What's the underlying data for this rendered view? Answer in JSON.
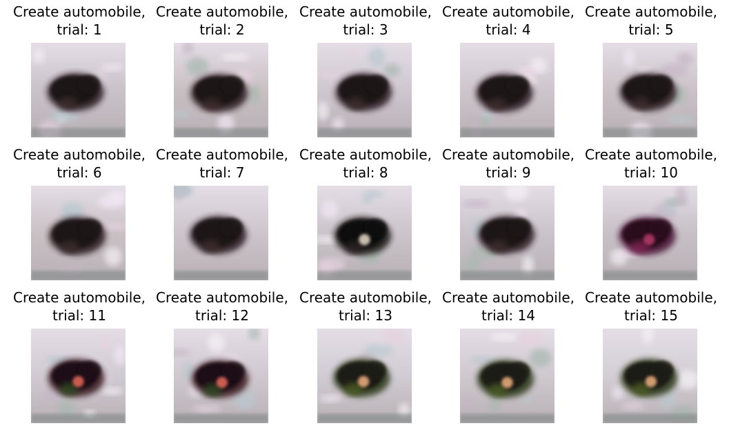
{
  "panels": [
    {
      "title": "Create automobile,",
      "subtitle": "trial: 1",
      "palette": "dark",
      "bg": "#c9c2c9"
    },
    {
      "title": "Create automobile,",
      "subtitle": "trial: 2",
      "palette": "dark",
      "bg": "#c8bfc2"
    },
    {
      "title": "Create automobile,",
      "subtitle": "trial: 3",
      "palette": "dark",
      "bg": "#cfc7d0"
    },
    {
      "title": "Create automobile,",
      "subtitle": "trial: 4",
      "palette": "dark",
      "bg": "#cec6cc"
    },
    {
      "title": "Create automobile,",
      "subtitle": "trial: 5",
      "palette": "dark",
      "bg": "#cac2c6"
    },
    {
      "title": "Create automobile,",
      "subtitle": "trial: 6",
      "palette": "dark",
      "bg": "#c9c1c4"
    },
    {
      "title": "Create automobile,",
      "subtitle": "trial: 7",
      "palette": "dark",
      "bg": "#cdc5cb"
    },
    {
      "title": "Create automobile,",
      "subtitle": "trial: 8",
      "palette": "ring",
      "bg": "#cbc4ca"
    },
    {
      "title": "Create automobile,",
      "subtitle": "trial: 9",
      "palette": "dark",
      "bg": "#cac3ca"
    },
    {
      "title": "Create automobile,",
      "subtitle": "trial: 10",
      "palette": "magenta",
      "bg": "#c7c0c6"
    },
    {
      "title": "Create automobile,",
      "subtitle": "trial: 11",
      "palette": "mixed",
      "bg": "#d0cad2"
    },
    {
      "title": "Create automobile,",
      "subtitle": "trial: 12",
      "palette": "mixed",
      "bg": "#cfc8cf"
    },
    {
      "title": "Create automobile,",
      "subtitle": "trial: 13",
      "palette": "green",
      "bg": "#d1ccd3"
    },
    {
      "title": "Create automobile,",
      "subtitle": "trial: 14",
      "palette": "green",
      "bg": "#cfc9cf"
    },
    {
      "title": "Create automobile,",
      "subtitle": "trial: 15",
      "palette": "green",
      "bg": "#d3ced4"
    }
  ]
}
